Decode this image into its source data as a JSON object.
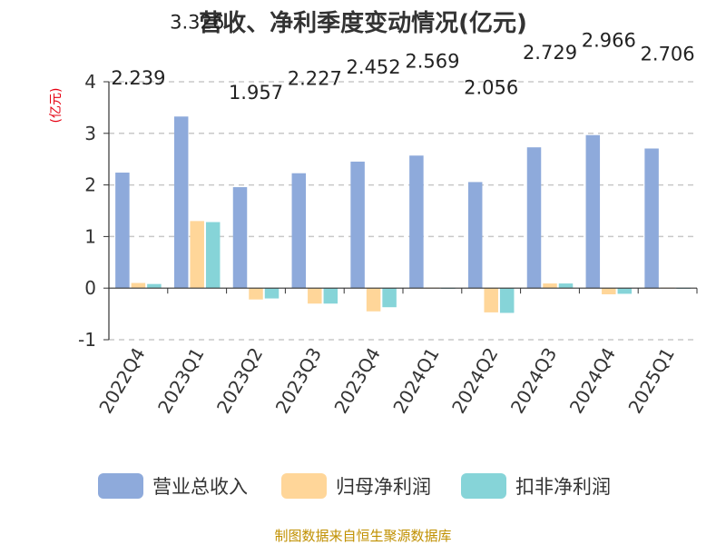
{
  "chart_data": {
    "type": "bar",
    "title": "营收、净利季度变动情况(亿元)",
    "ylabel": "(亿元)",
    "ylim": [
      -1,
      4
    ],
    "yticks": [
      4,
      3,
      2,
      1,
      0,
      -1
    ],
    "grid": true,
    "legend_position": "bottom",
    "categories": [
      "2022Q4",
      "2023Q1",
      "2023Q2",
      "2023Q3",
      "2023Q4",
      "2024Q1",
      "2024Q2",
      "2024Q3",
      "2024Q4",
      "2025Q1"
    ],
    "series": [
      {
        "name": "营业总收入",
        "color": "#8eaadb",
        "values": [
          2.239,
          3.326,
          1.957,
          2.227,
          2.452,
          2.569,
          2.056,
          2.729,
          2.966,
          2.706
        ]
      },
      {
        "name": "归母净利润",
        "color": "#ffd699",
        "values": [
          0.1,
          1.3,
          -0.22,
          -0.3,
          -0.45,
          0.01,
          -0.47,
          0.09,
          -0.12,
          0.01
        ]
      },
      {
        "name": "扣非净利润",
        "color": "#86d4d8",
        "values": [
          0.08,
          1.28,
          -0.2,
          -0.3,
          -0.37,
          0.005,
          -0.48,
          0.09,
          -0.11,
          0.005
        ]
      }
    ],
    "data_labels": [
      "2.239",
      "3.326",
      "1.957",
      "2.227",
      "2.452",
      "2.569",
      "2.056",
      "2.729",
      "2.966",
      "2.706"
    ],
    "source": "制图数据来自恒生聚源数据库"
  }
}
